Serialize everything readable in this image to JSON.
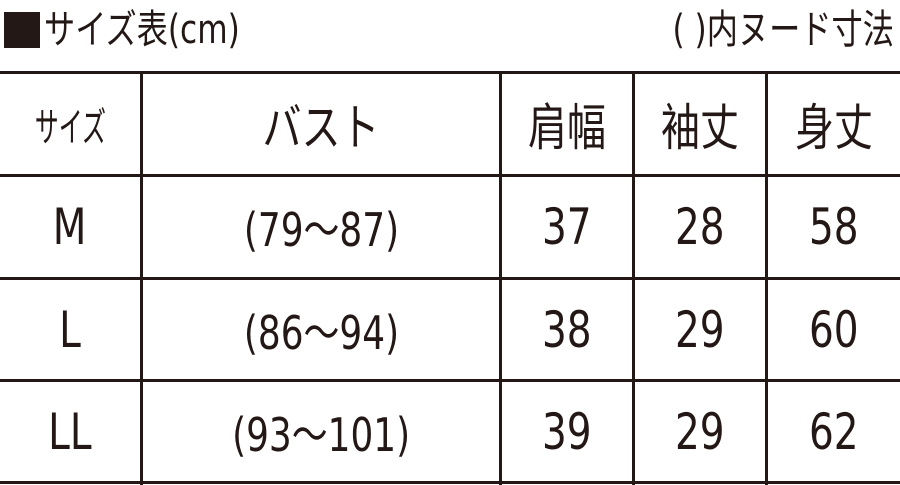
{
  "title": "サイズ表(cm)",
  "note": "(  )内ヌード寸法",
  "table": {
    "headers": [
      "サイズ",
      "バスト",
      "肩幅",
      "袖丈",
      "身丈"
    ],
    "rows": [
      {
        "size": "M",
        "bust": "(79〜87)",
        "shoulder": "37",
        "sleeve": "28",
        "length": "58"
      },
      {
        "size": "L",
        "bust": "(86〜94)",
        "shoulder": "38",
        "sleeve": "29",
        "length": "60"
      },
      {
        "size": "LL",
        "bust": "(93〜101)",
        "shoulder": "39",
        "sleeve": "29",
        "length": "62"
      }
    ]
  }
}
